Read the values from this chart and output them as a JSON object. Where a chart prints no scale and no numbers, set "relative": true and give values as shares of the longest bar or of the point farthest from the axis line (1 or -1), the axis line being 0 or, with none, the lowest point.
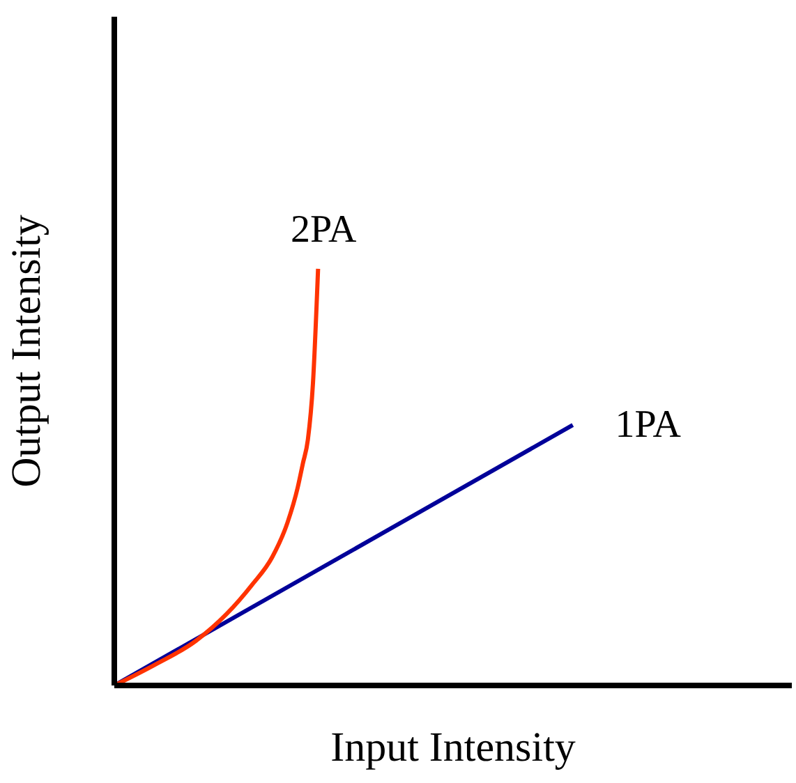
{
  "chart_data": {
    "type": "line",
    "relative": true,
    "xlabel": "Input Intensity",
    "ylabel": "Output Intensity",
    "categories": [
      null,
      null,
      null,
      null,
      null,
      null,
      null,
      null,
      null,
      null,
      null,
      null,
      null,
      null,
      null,
      null,
      null,
      null,
      null,
      null,
      null,
      null,
      null,
      null,
      null,
      null,
      null,
      null,
      null,
      null,
      null,
      null,
      null,
      null,
      null,
      null,
      null,
      null,
      null,
      null,
      null,
      null,
      null,
      null,
      null,
      null,
      null,
      null,
      null,
      null,
      null,
      null,
      null,
      null,
      null,
      null,
      null,
      null,
      null,
      null,
      null,
      null,
      null,
      null,
      null,
      null,
      null,
      null,
      null,
      null,
      null,
      null,
      null,
      null,
      null,
      null,
      null,
      null,
      null,
      null,
      null,
      null,
      null,
      null,
      null,
      null,
      null,
      null,
      null,
      null,
      null,
      null,
      null,
      null,
      null,
      null,
      null,
      null,
      null,
      null,
      null,
      null,
      null,
      null,
      null,
      null,
      null,
      null,
      null,
      null,
      null,
      null,
      null,
      null,
      null,
      null,
      null,
      null,
      null,
      null,
      null,
      null,
      null,
      null,
      null,
      null,
      null,
      null,
      null,
      null,
      null,
      null,
      null,
      null
    ],
    "series": [
      {
        "name": "1PA",
        "color": "#000099",
        "values": [
          0,
          null,
          null,
          null,
          null,
          null,
          null,
          null,
          null,
          null,
          null,
          null,
          null,
          null,
          null,
          null,
          null,
          null,
          null,
          null,
          null,
          null,
          null,
          null,
          null,
          null,
          null,
          null,
          null,
          null,
          null,
          null,
          null,
          null,
          null,
          null,
          null,
          null,
          null,
          null,
          null,
          null,
          null,
          null,
          null,
          null,
          null,
          null,
          null,
          null,
          null,
          null,
          null,
          null,
          null,
          null,
          null,
          null,
          null,
          null,
          null,
          null,
          null,
          null,
          null,
          null,
          null,
          null,
          null,
          null,
          null,
          null,
          null,
          null,
          null,
          null,
          null,
          null,
          null,
          null,
          null,
          null,
          null,
          null,
          null,
          null,
          null,
          null,
          null,
          null,
          0.625,
          null,
          null,
          null,
          null,
          null,
          null,
          null,
          null,
          null,
          null,
          null,
          null,
          null,
          null,
          null,
          null,
          null,
          null,
          null,
          null,
          null,
          null,
          null,
          null,
          null,
          null,
          null,
          null,
          null,
          null,
          null,
          null,
          null,
          null,
          null,
          null,
          null,
          null,
          null,
          null,
          null,
          null,
          null
        ]
      },
      {
        "name": "2PA",
        "color": "#ff3300",
        "values": [
          0,
          null,
          null,
          null,
          null,
          null,
          null,
          null,
          0.05,
          null,
          null,
          null,
          null,
          null,
          null,
          null,
          0.107,
          null,
          null,
          null,
          null,
          null,
          0.171,
          null,
          null,
          null,
          null,
          0.241,
          null,
          null,
          null,
          0.308,
          null,
          null,
          0.391,
          null,
          0.475,
          0.532,
          0.59,
          0.726,
          1,
          null,
          null,
          null,
          null,
          null,
          null,
          null,
          null,
          null,
          null,
          null,
          null,
          null,
          null,
          null,
          null,
          null,
          null,
          null,
          null,
          null,
          null,
          null,
          null,
          null,
          null,
          null,
          null,
          null,
          null,
          null,
          null,
          null,
          null,
          null,
          null,
          null,
          null,
          null,
          null,
          null,
          null,
          null,
          null,
          null,
          null,
          null,
          null,
          null,
          null,
          null,
          null,
          null,
          null,
          null,
          null,
          null,
          null,
          null,
          null,
          null,
          null,
          null,
          null,
          null,
          null,
          null,
          null,
          null,
          null,
          null,
          null,
          null,
          null,
          null,
          null,
          null,
          null,
          null,
          null,
          null,
          null,
          null,
          null,
          null,
          null,
          null,
          null,
          null,
          null,
          null,
          null,
          null
        ]
      }
    ]
  }
}
